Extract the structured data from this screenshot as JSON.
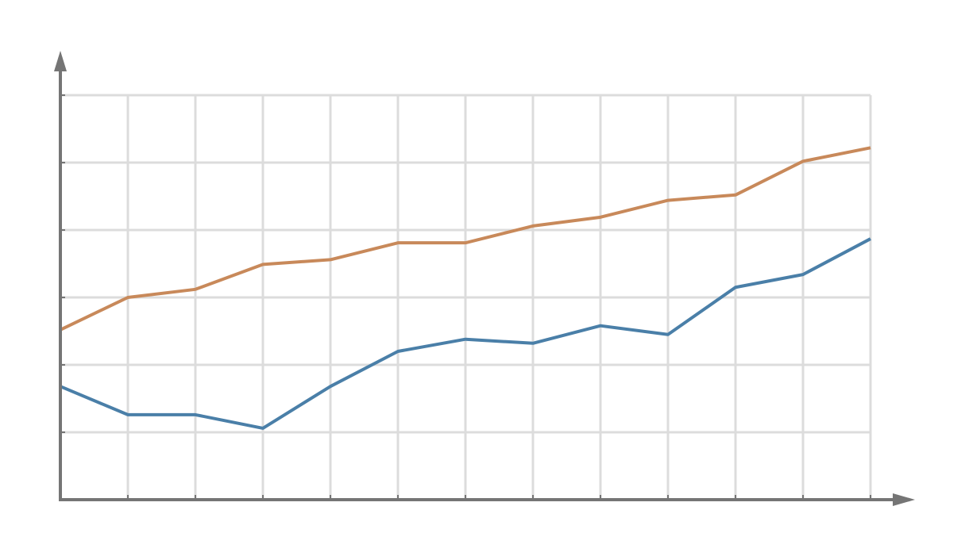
{
  "chart_data": {
    "type": "line",
    "x": [
      0,
      1,
      2,
      3,
      4,
      5,
      6,
      7,
      8,
      9,
      10,
      11,
      12
    ],
    "xlim": [
      0,
      12
    ],
    "xticks": [
      0,
      1,
      2,
      3,
      4,
      5,
      6,
      7,
      8,
      9,
      10,
      11,
      12
    ],
    "ylim": [
      0,
      6
    ],
    "yticks": [
      0,
      1,
      2,
      3,
      4,
      5,
      6
    ],
    "grid": true,
    "series": [
      {
        "color": "#c8895a",
        "values": [
          2.52,
          3.0,
          3.12,
          3.49,
          3.56,
          3.81,
          3.81,
          4.06,
          4.19,
          4.44,
          4.52,
          5.02,
          5.22
        ]
      },
      {
        "color": "#4a7fa8",
        "values": [
          1.68,
          1.26,
          1.26,
          1.06,
          1.68,
          2.2,
          2.38,
          2.32,
          2.58,
          2.45,
          3.15,
          3.34,
          3.87
        ]
      }
    ]
  }
}
